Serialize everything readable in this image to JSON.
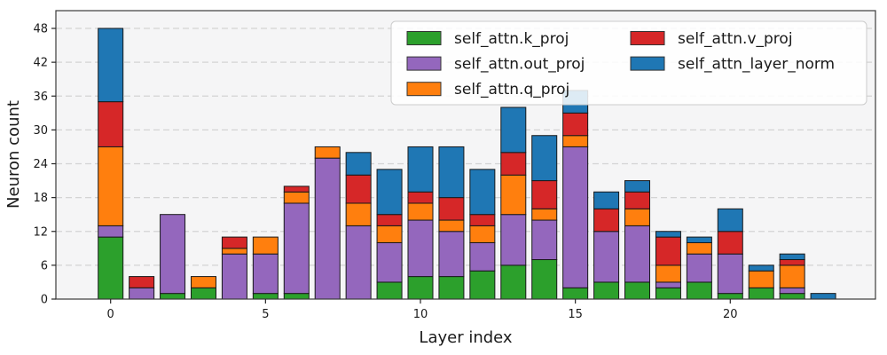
{
  "chart_data": {
    "type": "bar",
    "stacked": true,
    "title": "",
    "xlabel": "Layer index",
    "ylabel": "Neuron count",
    "x": [
      0,
      1,
      2,
      3,
      4,
      5,
      6,
      7,
      8,
      9,
      10,
      11,
      12,
      13,
      14,
      15,
      16,
      17,
      18,
      19,
      20,
      21,
      22,
      23
    ],
    "xticks": [
      0,
      5,
      10,
      15,
      20
    ],
    "yticks": [
      0,
      6,
      12,
      18,
      24,
      30,
      36,
      42,
      48
    ],
    "ylim": [
      0,
      51.2
    ],
    "grid": true,
    "grid_style": "dashed-horizontal",
    "legend_position": "upper right",
    "legend_columns": 2,
    "plot_bg_color": "#f5f5f6",
    "series": [
      {
        "name": "self_attn.k_proj",
        "color": "#2ca02c",
        "values": [
          11,
          0,
          1,
          2,
          0,
          1,
          1,
          0,
          0,
          3,
          4,
          4,
          5,
          6,
          7,
          2,
          3,
          3,
          2,
          3,
          1,
          2,
          1,
          0
        ]
      },
      {
        "name": "self_attn.out_proj",
        "color": "#9467bd",
        "values": [
          2,
          2,
          14,
          0,
          8,
          7,
          16,
          25,
          13,
          7,
          10,
          8,
          5,
          9,
          7,
          25,
          9,
          10,
          1,
          5,
          7,
          0,
          1,
          0
        ]
      },
      {
        "name": "self_attn.q_proj",
        "color": "#ff7f0e",
        "values": [
          14,
          0,
          0,
          2,
          1,
          3,
          2,
          2,
          4,
          3,
          3,
          2,
          3,
          7,
          2,
          2,
          0,
          3,
          3,
          2,
          0,
          3,
          4,
          0
        ]
      },
      {
        "name": "self_attn.v_proj",
        "color": "#d62728",
        "values": [
          8,
          2,
          0,
          0,
          2,
          0,
          1,
          0,
          5,
          2,
          2,
          4,
          2,
          4,
          5,
          4,
          4,
          3,
          5,
          0,
          4,
          0,
          1,
          0
        ]
      },
      {
        "name": "self_attn_layer_norm",
        "color": "#1f77b4",
        "values": [
          13,
          0,
          0,
          0,
          0,
          0,
          0,
          0,
          4,
          8,
          8,
          9,
          8,
          8,
          8,
          4,
          3,
          2,
          1,
          1,
          4,
          1,
          1,
          1
        ]
      }
    ],
    "bar_totals": [
      48,
      4,
      15,
      4,
      11,
      11,
      20,
      27,
      26,
      23,
      27,
      27,
      23,
      34,
      29,
      37,
      19,
      21,
      12,
      11,
      16,
      6,
      8,
      1
    ]
  }
}
